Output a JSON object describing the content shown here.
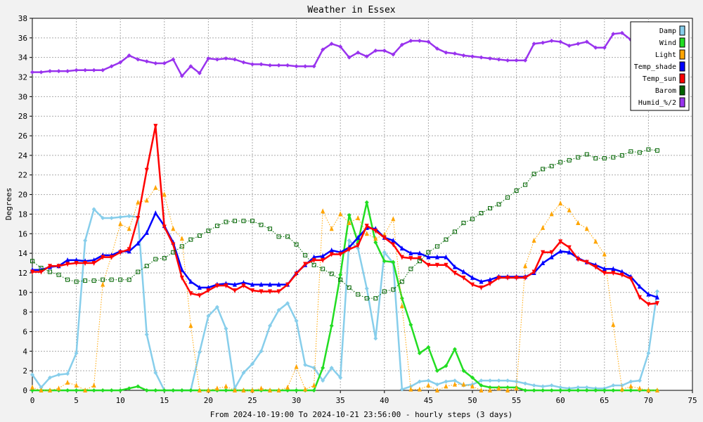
{
  "chart_data": {
    "type": "line",
    "title": "Weather in Essex",
    "xlabel": "From 2024-10-19:00 To 2024-10-21 23:56:00 - hourly steps (3 days)",
    "ylabel": "Degrees",
    "xlim": [
      0,
      75
    ],
    "ylim": [
      0,
      38
    ],
    "x_ticks": [
      0,
      5,
      10,
      15,
      20,
      25,
      30,
      35,
      40,
      45,
      50,
      55,
      60,
      65,
      70,
      75
    ],
    "y_ticks": [
      0,
      2,
      4,
      6,
      8,
      10,
      12,
      14,
      16,
      18,
      20,
      22,
      24,
      26,
      28,
      30,
      32,
      34,
      36,
      38
    ],
    "grid": true,
    "legend_position": "top-right",
    "x": [
      0,
      1,
      2,
      3,
      4,
      5,
      6,
      7,
      8,
      9,
      10,
      11,
      12,
      13,
      14,
      15,
      16,
      17,
      18,
      19,
      20,
      21,
      22,
      23,
      24,
      25,
      26,
      27,
      28,
      29,
      30,
      31,
      32,
      33,
      34,
      35,
      36,
      37,
      38,
      39,
      40,
      41,
      42,
      43,
      44,
      45,
      46,
      47,
      48,
      49,
      50,
      51,
      52,
      53,
      54,
      55,
      56,
      57,
      58,
      59,
      60,
      61,
      62,
      63,
      64,
      65,
      66,
      67,
      68,
      69,
      70,
      71
    ],
    "series": [
      {
        "name": "Damp",
        "color": "#87ceeb",
        "marker": "diamond",
        "style": "solid",
        "values": [
          1.6,
          0.3,
          1.3,
          1.6,
          1.7,
          3.8,
          15.3,
          18.5,
          17.6,
          17.6,
          17.7,
          17.8,
          17.7,
          5.7,
          1.8,
          0,
          0,
          0,
          0,
          3.9,
          7.6,
          8.5,
          6.3,
          0.2,
          1.8,
          2.7,
          4.0,
          6.6,
          8.2,
          8.9,
          7.1,
          2.6,
          2.3,
          1.0,
          2.3,
          1.3,
          15.3,
          14.5,
          10.4,
          5.3,
          14.1,
          13.0,
          0.1,
          0.4,
          0.9,
          1.0,
          0.6,
          0.9,
          1.0,
          0.5,
          0.6,
          1.0,
          1.0,
          1.0,
          1.0,
          0.9,
          0.7,
          0.5,
          0.4,
          0.5,
          0.3,
          0.2,
          0.3,
          0.3,
          0.2,
          0.2,
          0.5,
          0.5,
          0.9,
          1.0,
          3.8,
          10.1
        ]
      },
      {
        "name": "Wind",
        "color": "#22dd22",
        "marker": "diamond",
        "style": "solid",
        "values": [
          0,
          0,
          0,
          0,
          0,
          0,
          0,
          0,
          0,
          0,
          0,
          0.2,
          0.4,
          0,
          0,
          0,
          0,
          0,
          0,
          0,
          0,
          0,
          0,
          0,
          0,
          0,
          0,
          0,
          0,
          0,
          0,
          0,
          0,
          2.3,
          6.6,
          11.8,
          17.9,
          15.1,
          19.2,
          15.1,
          13.2,
          13.1,
          9.4,
          6.7,
          3.8,
          4.4,
          2.0,
          2.5,
          4.2,
          2.0,
          1.3,
          0.5,
          0.3,
          0.3,
          0.3,
          0.3,
          0,
          0,
          0,
          0,
          0,
          0,
          0,
          0,
          0,
          0,
          0,
          0,
          0,
          0,
          0,
          0
        ]
      },
      {
        "name": "Light",
        "color": "#ffa500",
        "marker": "triangle",
        "style": "dotted",
        "values": [
          0.3,
          0,
          0,
          0.2,
          0.8,
          0.5,
          0,
          0.5,
          10.8,
          13.8,
          17.0,
          16.5,
          19.2,
          19.4,
          20.7,
          20.0,
          16.5,
          15.5,
          6.6,
          0,
          0,
          0.2,
          0.4,
          0,
          0,
          0,
          0.2,
          0,
          0,
          0.3,
          2.4,
          0.1,
          0.5,
          18.3,
          16.5,
          18.0,
          17.1,
          17.6,
          16.0,
          15.5,
          15.9,
          17.5,
          8.6,
          0.1,
          0.1,
          0.5,
          0,
          0.4,
          0.6,
          0.6,
          0.4,
          0,
          0,
          0.2,
          0,
          0.2,
          12.7,
          15.3,
          16.6,
          18.0,
          19.1,
          18.4,
          17.1,
          16.5,
          15.2,
          13.9,
          6.7,
          0.1,
          0.4,
          0.2,
          0,
          0
        ]
      },
      {
        "name": "Temp_shade",
        "color": "#0000ff",
        "marker": "triangle",
        "style": "solid",
        "values": [
          12.3,
          12.3,
          12.6,
          12.7,
          13.3,
          13.3,
          13.2,
          13.3,
          13.8,
          13.8,
          14.2,
          14.2,
          15.0,
          16.1,
          18.1,
          16.8,
          15.1,
          12.3,
          11.1,
          10.5,
          10.5,
          10.8,
          10.9,
          10.8,
          11.0,
          10.8,
          10.8,
          10.8,
          10.8,
          10.8,
          12.0,
          12.8,
          13.6,
          13.7,
          14.3,
          14.1,
          14.6,
          15.6,
          16.6,
          16.5,
          15.6,
          15.3,
          14.5,
          14.0,
          14.0,
          13.6,
          13.6,
          13.6,
          12.6,
          12.1,
          11.5,
          11.1,
          11.3,
          11.6,
          11.6,
          11.6,
          11.6,
          12.0,
          13.0,
          13.6,
          14.2,
          14.1,
          13.5,
          13.1,
          12.8,
          12.4,
          12.4,
          12.1,
          11.6,
          10.6,
          9.8,
          9.5
        ]
      },
      {
        "name": "Temp_sun",
        "color": "#ff0000",
        "marker": "triangle-down",
        "style": "solid",
        "values": [
          12.1,
          12.1,
          12.7,
          12.7,
          12.9,
          13.0,
          13.0,
          13.0,
          13.6,
          13.6,
          14.1,
          14.4,
          17.6,
          22.5,
          27.0,
          16.7,
          14.9,
          11.5,
          9.9,
          9.7,
          10.2,
          10.7,
          10.7,
          10.2,
          10.7,
          10.2,
          10.1,
          10.1,
          10.1,
          10.8,
          11.9,
          12.9,
          13.3,
          13.3,
          13.9,
          13.9,
          14.4,
          14.8,
          16.8,
          16.3,
          15.6,
          14.9,
          13.6,
          13.5,
          13.5,
          12.8,
          12.8,
          12.8,
          12.0,
          11.5,
          10.8,
          10.5,
          10.9,
          11.5,
          11.5,
          11.5,
          11.5,
          12.1,
          14.1,
          14.1,
          15.2,
          14.6,
          13.4,
          13.1,
          12.6,
          12.0,
          12.0,
          11.8,
          11.4,
          9.5,
          8.8,
          8.9
        ]
      },
      {
        "name": "Barom",
        "color": "#006400",
        "marker": "square-open",
        "style": "dotted",
        "values": [
          13.2,
          12.5,
          12.1,
          11.8,
          11.3,
          11.1,
          11.2,
          11.2,
          11.3,
          11.3,
          11.3,
          11.3,
          12.1,
          12.7,
          13.4,
          13.5,
          14.1,
          14.7,
          15.4,
          15.8,
          16.3,
          16.8,
          17.2,
          17.3,
          17.3,
          17.3,
          16.9,
          16.5,
          15.7,
          15.7,
          14.9,
          13.8,
          12.8,
          12.4,
          11.9,
          11.3,
          10.5,
          9.8,
          9.4,
          9.4,
          10.1,
          10.3,
          11.1,
          12.4,
          13.2,
          14.1,
          14.7,
          15.4,
          16.2,
          17.1,
          17.5,
          18.1,
          18.6,
          19.0,
          19.7,
          20.4,
          21.0,
          22.1,
          22.6,
          22.9,
          23.3,
          23.5,
          23.8,
          24.1,
          23.7,
          23.7,
          23.8,
          24.0,
          24.4,
          24.3,
          24.6,
          24.5
        ]
      },
      {
        "name": "Humid_%/2",
        "color": "#9933ee",
        "marker": "diamond",
        "style": "solid",
        "values": [
          32.5,
          32.5,
          32.6,
          32.6,
          32.6,
          32.7,
          32.7,
          32.7,
          32.7,
          33.1,
          33.5,
          34.2,
          33.8,
          33.6,
          33.4,
          33.4,
          33.8,
          32.1,
          33.1,
          32.4,
          33.9,
          33.8,
          33.9,
          33.8,
          33.5,
          33.3,
          33.3,
          33.2,
          33.2,
          33.2,
          33.1,
          33.1,
          33.1,
          34.8,
          35.4,
          35.1,
          34.0,
          34.5,
          34.1,
          34.7,
          34.7,
          34.3,
          35.3,
          35.7,
          35.7,
          35.6,
          34.9,
          34.5,
          34.4,
          34.2,
          34.1,
          34.0,
          33.9,
          33.8,
          33.7,
          33.7,
          33.7,
          35.4,
          35.5,
          35.7,
          35.6,
          35.2,
          35.4,
          35.6,
          35.0,
          35.0,
          36.4,
          36.5,
          35.8,
          35.7,
          35.8,
          35.9
        ]
      }
    ]
  }
}
